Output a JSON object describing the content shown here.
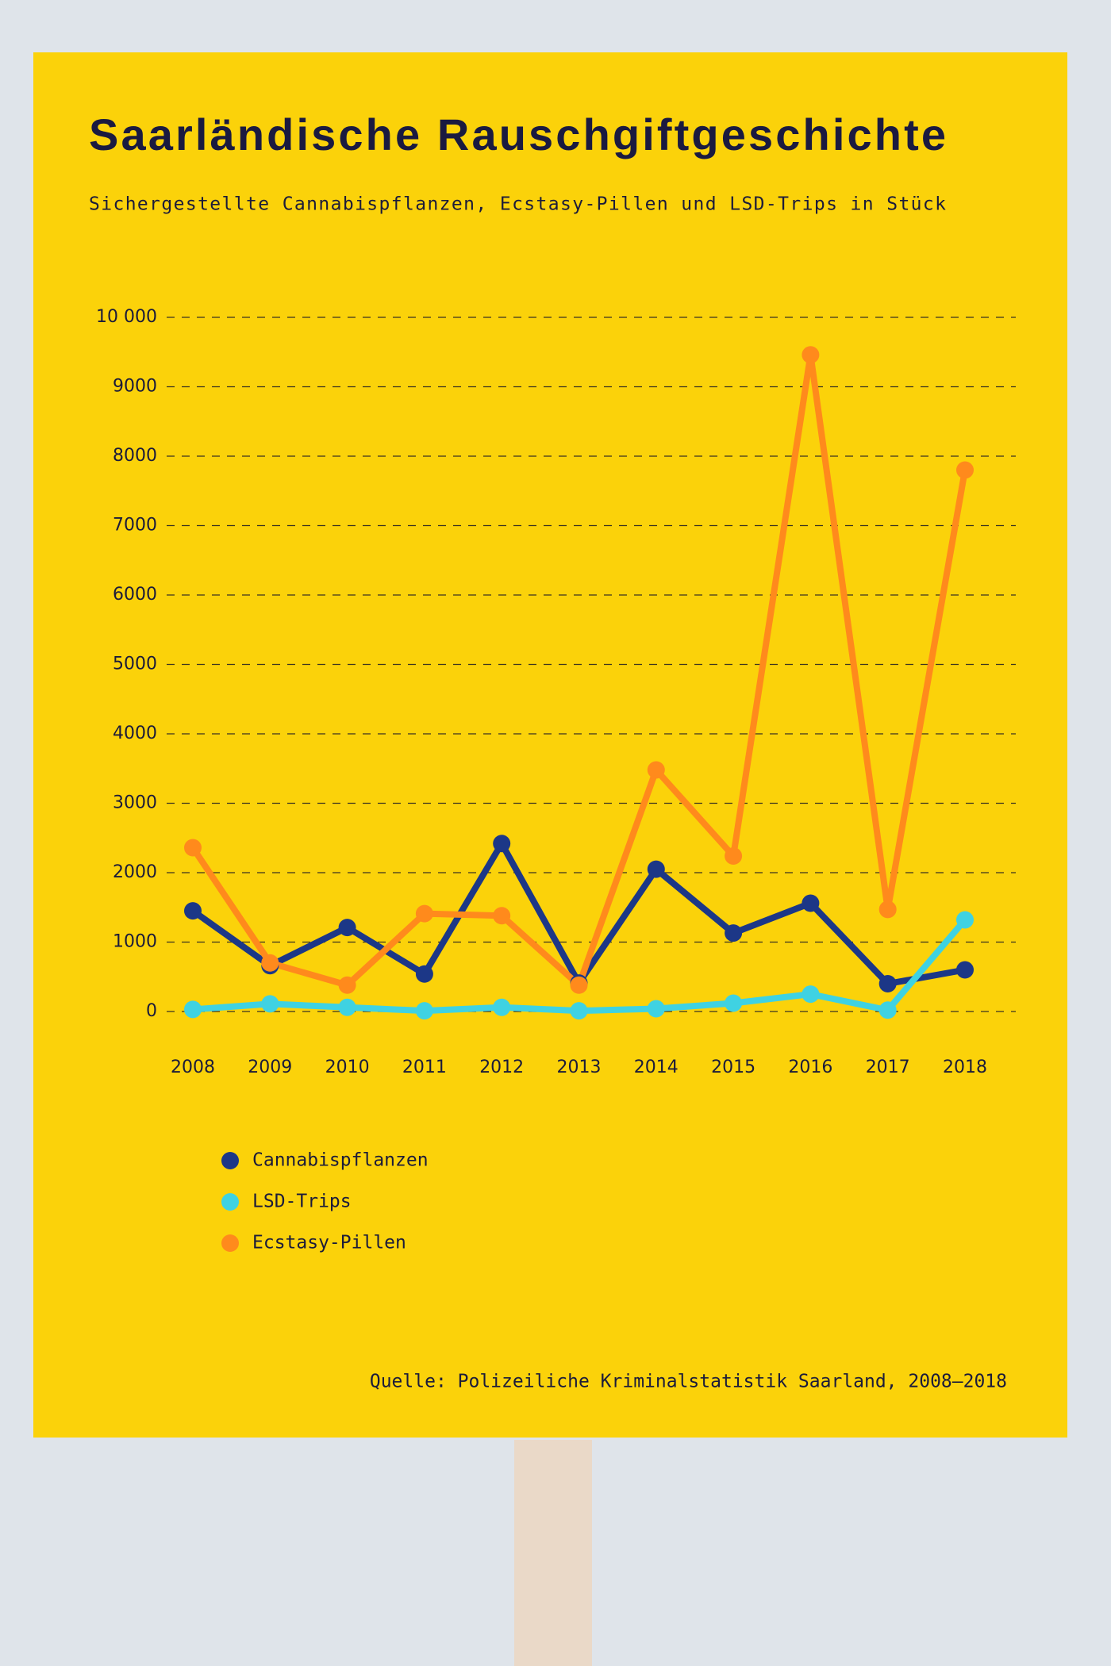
{
  "chart_data": {
    "type": "line",
    "title": "Saarländische Rauschgiftgeschichte",
    "subtitle": "Sichergestellte Cannabispflanzen, Ecstasy-Pillen und LSD-Trips in Stück",
    "source": "Quelle: Polizeiliche Kriminalstatistik Saarland, 2008–2018",
    "categories": [
      "2008",
      "2009",
      "2010",
      "2011",
      "2012",
      "2013",
      "2014",
      "2015",
      "2016",
      "2017",
      "2018"
    ],
    "series": [
      {
        "name": "Cannabispflanzen",
        "color": "#1c3787",
        "values": [
          1450,
          660,
          1210,
          540,
          2420,
          410,
          2050,
          1130,
          1560,
          400,
          600
        ]
      },
      {
        "name": "LSD-Trips",
        "color": "#3fd2e2",
        "values": [
          30,
          110,
          60,
          10,
          60,
          10,
          40,
          120,
          250,
          20,
          1320
        ]
      },
      {
        "name": "Ecstasy-Pillen",
        "color": "#ff8a1c",
        "values": [
          2360,
          700,
          380,
          1410,
          1380,
          380,
          3480,
          2240,
          9460,
          1470,
          7800
        ]
      }
    ],
    "ylim": [
      0,
      10000
    ],
    "yticks": [
      0,
      1000,
      2000,
      3000,
      4000,
      5000,
      6000,
      7000,
      8000,
      9000,
      {
        "value": 10000,
        "label": "10 000"
      }
    ],
    "grid": true
  }
}
